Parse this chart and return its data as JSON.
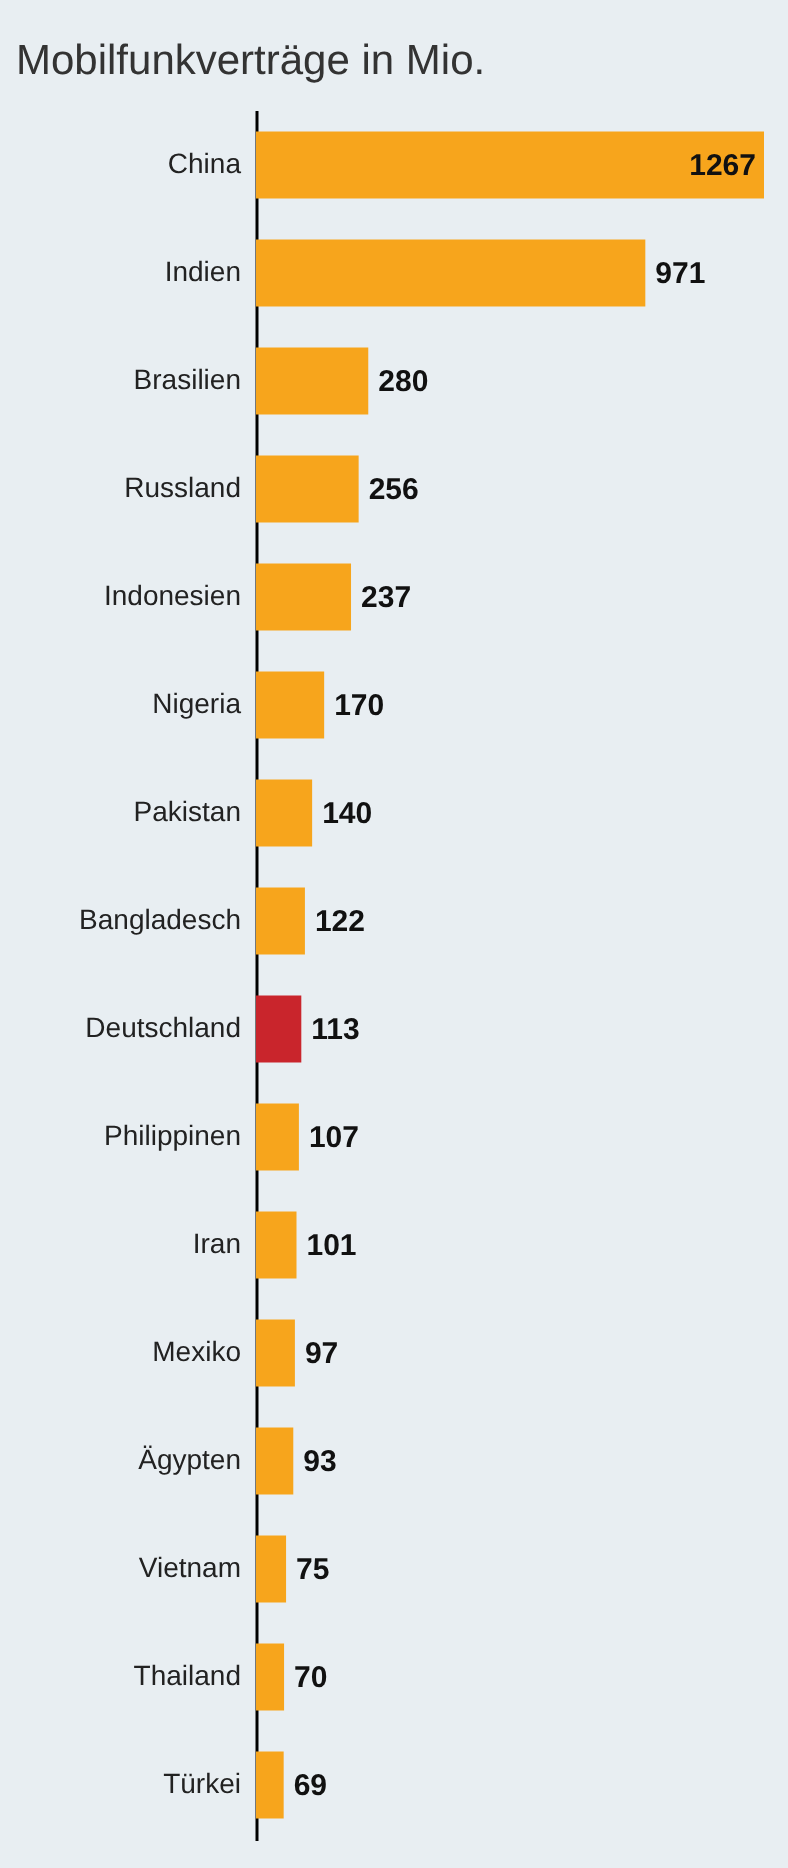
{
  "chart_data": {
    "type": "bar",
    "orientation": "horizontal",
    "title": "Mobilfunkverträge in Mio.",
    "categories": [
      "China",
      "Indien",
      "Brasilien",
      "Russland",
      "Indonesien",
      "Nigeria",
      "Pakistan",
      "Bangladesch",
      "Deutschland",
      "Philippinen",
      "Iran",
      "Mexiko",
      "Ägypten",
      "Vietnam",
      "Thailand",
      "Türkei"
    ],
    "values": [
      1267,
      971,
      280,
      256,
      237,
      170,
      140,
      122,
      113,
      107,
      101,
      97,
      93,
      75,
      70,
      69
    ],
    "colors": [
      "#f7a51c",
      "#f7a51c",
      "#f7a51c",
      "#f7a51c",
      "#f7a51c",
      "#f7a51c",
      "#f7a51c",
      "#f7a51c",
      "#c9252c",
      "#f7a51c",
      "#f7a51c",
      "#f7a51c",
      "#f7a51c",
      "#f7a51c",
      "#f7a51c",
      "#f7a51c"
    ],
    "data_labels": true,
    "grid": false
  }
}
